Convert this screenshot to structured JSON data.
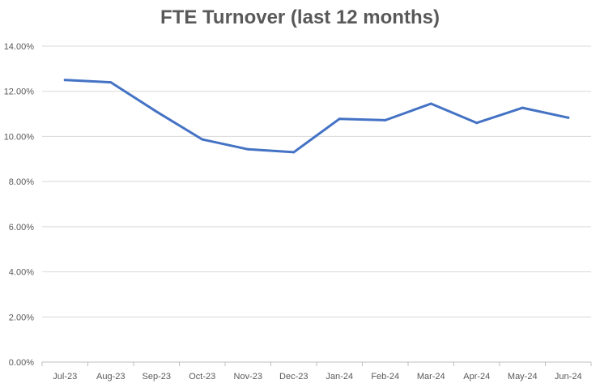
{
  "chart_data": {
    "type": "line",
    "title": "FTE Turnover (last 12 months)",
    "xlabel": "",
    "ylabel": "",
    "categories": [
      "Jul-23",
      "Aug-23",
      "Sep-23",
      "Oct-23",
      "Nov-23",
      "Dec-23",
      "Jan-24",
      "Feb-24",
      "Mar-24",
      "Apr-24",
      "May-24",
      "Jun-24"
    ],
    "series": [
      {
        "values": [
          12.5,
          12.4,
          11.1,
          9.87,
          9.43,
          9.3,
          10.78,
          10.72,
          11.45,
          10.6,
          11.27,
          10.83
        ],
        "color": "#4472c4"
      }
    ],
    "y_ticks": [
      "0.00%",
      "2.00%",
      "4.00%",
      "6.00%",
      "8.00%",
      "10.00%",
      "12.00%",
      "14.00%"
    ],
    "ylim": [
      0,
      14
    ],
    "y_unit": "%",
    "grid": true,
    "legend": "none"
  }
}
